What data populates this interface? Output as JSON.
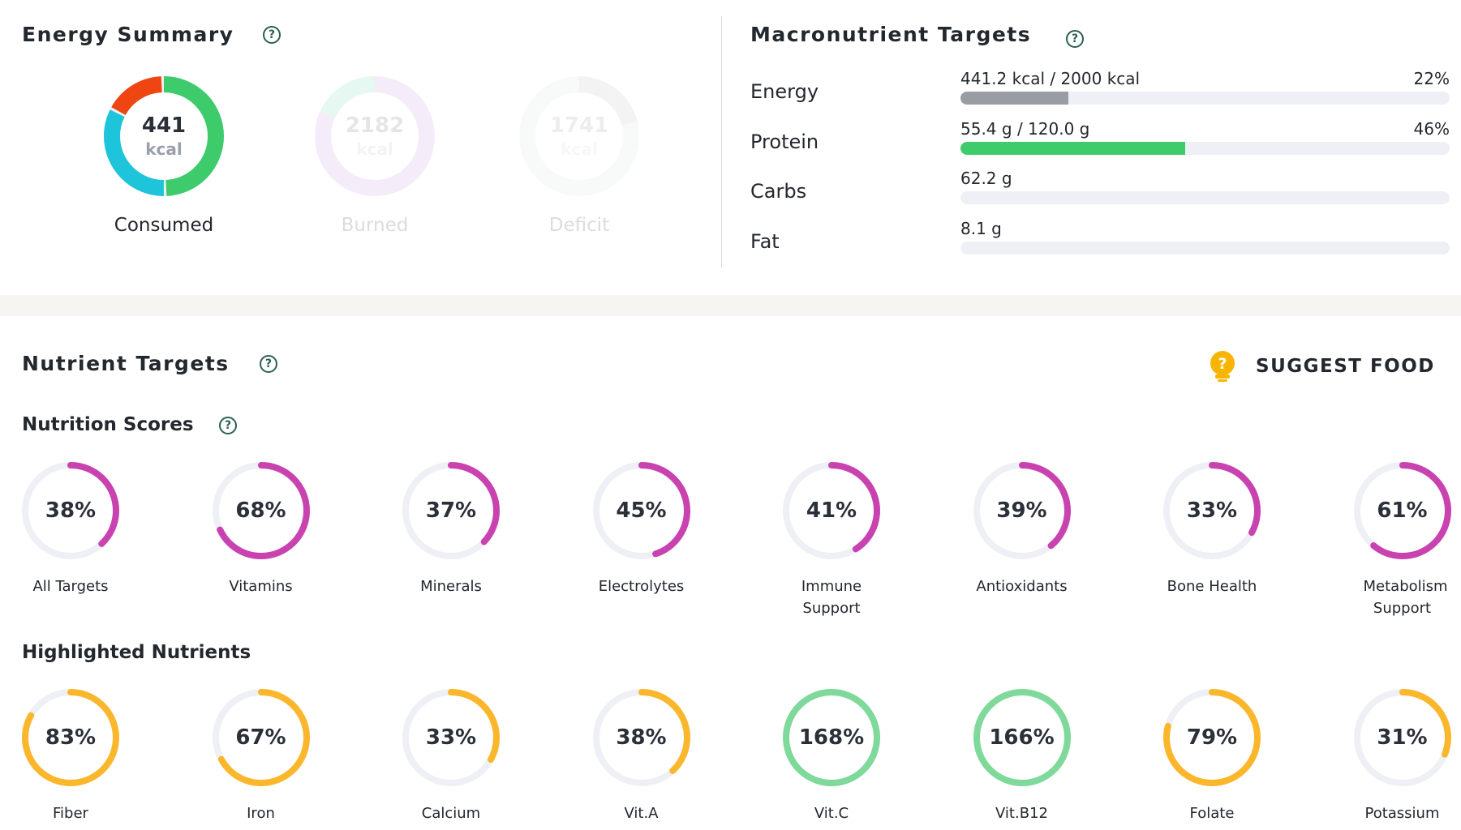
{
  "energy_summary": {
    "title": "Energy Summary",
    "help_icon": "?",
    "consumed": {
      "value": "441",
      "unit": "kcal",
      "label": "Consumed",
      "segments": [
        {
          "name": "protein",
          "fraction": 0.5,
          "color": "#3ecb6c"
        },
        {
          "name": "carbs",
          "fraction": 0.33,
          "color": "#1ec4d9"
        },
        {
          "name": "fat",
          "fraction": 0.17,
          "color": "#ee4513"
        }
      ]
    },
    "burned": {
      "value": "2182",
      "unit": "kcal",
      "label": "Burned"
    },
    "deficit": {
      "value": "1741",
      "unit": "kcal",
      "label": "Deficit"
    }
  },
  "macronutrient_targets": {
    "title": "Macronutrient Targets",
    "help_icon": "?",
    "rows": [
      {
        "name": "Energy",
        "text": "441.2 kcal / 2000 kcal",
        "pct": "22%",
        "fraction": 0.22,
        "color": "#9a9ca3"
      },
      {
        "name": "Protein",
        "text": "55.4 g / 120.0 g",
        "pct": "46%",
        "fraction": 0.46,
        "color": "#3ecb6c"
      },
      {
        "name": "Carbs",
        "text": "62.2 g",
        "pct": "",
        "fraction": 0,
        "color": "#1ec4d9"
      },
      {
        "name": "Fat",
        "text": "8.1 g",
        "pct": "",
        "fraction": 0,
        "color": "#ee4513"
      }
    ]
  },
  "nutrient_targets": {
    "title": "Nutrient Targets",
    "help_icon": "?",
    "suggest_food_label": "SUGGEST FOOD",
    "suggest_icon": "?"
  },
  "nutrition_scores": {
    "title": "Nutrition Scores",
    "help_icon": "?",
    "color": "#c943b0",
    "items": [
      {
        "pct": "38%",
        "fraction": 0.38,
        "label": "All Targets"
      },
      {
        "pct": "68%",
        "fraction": 0.68,
        "label": "Vitamins"
      },
      {
        "pct": "37%",
        "fraction": 0.37,
        "label": "Minerals"
      },
      {
        "pct": "45%",
        "fraction": 0.45,
        "label": "Electrolytes"
      },
      {
        "pct": "41%",
        "fraction": 0.41,
        "label": "Immune Support"
      },
      {
        "pct": "39%",
        "fraction": 0.39,
        "label": "Antioxidants"
      },
      {
        "pct": "33%",
        "fraction": 0.33,
        "label": "Bone Health"
      },
      {
        "pct": "61%",
        "fraction": 0.61,
        "label": "Metabolism Support"
      }
    ]
  },
  "highlighted_nutrients": {
    "title": "Highlighted Nutrients",
    "color_under": "#fbb72c",
    "color_over": "#7ed99a",
    "items": [
      {
        "pct": "83%",
        "fraction": 0.83,
        "label": "Fiber"
      },
      {
        "pct": "67%",
        "fraction": 0.67,
        "label": "Iron"
      },
      {
        "pct": "33%",
        "fraction": 0.33,
        "label": "Calcium"
      },
      {
        "pct": "38%",
        "fraction": 0.38,
        "label": "Vit.A"
      },
      {
        "pct": "168%",
        "fraction": 1.68,
        "label": "Vit.C"
      },
      {
        "pct": "166%",
        "fraction": 1.66,
        "label": "Vit.B12"
      },
      {
        "pct": "79%",
        "fraction": 0.79,
        "label": "Folate"
      },
      {
        "pct": "31%",
        "fraction": 0.31,
        "label": "Potassium"
      }
    ]
  }
}
